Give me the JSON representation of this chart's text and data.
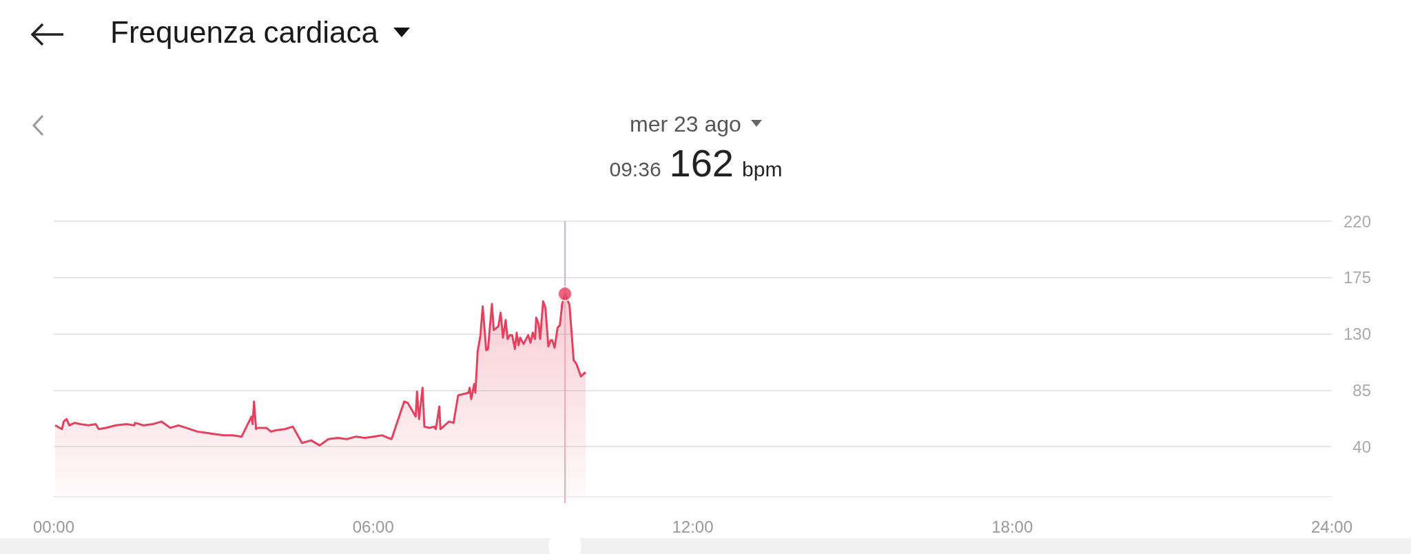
{
  "chart_data": {
    "type": "area",
    "title": "Frequenza cardiaca",
    "subtitle": "mer 23 ago",
    "annotations": [
      "09:36 162 bpm"
    ],
    "xlim": [
      0,
      24
    ],
    "xticks": [
      {
        "value": 0,
        "label": "00:00"
      },
      {
        "value": 6,
        "label": "06:00"
      },
      {
        "value": 12,
        "label": "12:00"
      },
      {
        "value": 18,
        "label": "18:00"
      },
      {
        "value": 24,
        "label": "24:00"
      }
    ],
    "ylim": [
      -5,
      220
    ],
    "yticks": [
      40,
      85,
      130,
      175,
      220
    ],
    "grid": "y",
    "marker": "none",
    "ref_lines": [
      {
        "axis": "x",
        "value": 9.6,
        "color": "#f2a9b7"
      }
    ],
    "series": [
      {
        "color": "#e5405e",
        "x": [
          0.026,
          0.155,
          0.186,
          0.242,
          0.293,
          0.392,
          0.5,
          0.651,
          0.789,
          0.845,
          0.975,
          1.169,
          1.363,
          1.514,
          1.527,
          1.686,
          1.859,
          2.023,
          2.191,
          2.346,
          2.484,
          2.7,
          2.872,
          3.023,
          3.196,
          3.368,
          3.528,
          3.713,
          3.735,
          3.761,
          3.8,
          3.821,
          3.994,
          4.08,
          4.166,
          4.339,
          4.49,
          4.662,
          4.835,
          4.994,
          5.158,
          5.33,
          5.503,
          5.675,
          5.848,
          6.171,
          6.344,
          6.581,
          6.646,
          6.797,
          6.822,
          6.861,
          6.926,
          6.96,
          7.055,
          7.142,
          7.176,
          7.241,
          7.262,
          7.422,
          7.508,
          7.594,
          7.789,
          7.81,
          7.84,
          7.896,
          7.918,
          7.961,
          8.013,
          8.056,
          8.121,
          8.155,
          8.229,
          8.263,
          8.349,
          8.392,
          8.436,
          8.487,
          8.522,
          8.565,
          8.608,
          8.66,
          8.694,
          8.729,
          8.759,
          8.824,
          8.91,
          8.953,
          8.996,
          9.039,
          9.061,
          9.104,
          9.134,
          9.19,
          9.233,
          9.289,
          9.333,
          9.363,
          9.406,
          9.462,
          9.505,
          9.548,
          9.6,
          9.686,
          9.764,
          9.816,
          9.902,
          9.967,
          9.988
        ],
        "values": [
          57,
          54,
          60,
          62,
          57,
          59,
          58,
          57,
          58,
          54,
          55,
          57,
          58,
          57,
          59,
          57,
          58,
          60,
          55,
          57,
          55,
          52,
          51,
          50,
          49,
          49,
          48,
          64,
          58,
          76,
          54,
          55,
          55,
          52,
          53,
          54,
          56,
          43,
          45,
          41,
          46,
          47,
          46,
          48,
          47,
          49,
          46,
          76,
          75,
          64,
          84,
          62,
          87,
          56,
          55,
          56,
          54,
          72,
          54,
          60,
          59,
          81,
          83,
          87,
          78,
          90,
          83,
          116,
          129,
          152,
          117,
          118,
          154,
          133,
          136,
          147,
          127,
          141,
          126,
          129,
          129,
          118,
          131,
          121,
          127,
          122,
          129,
          123,
          131,
          126,
          143,
          138,
          126,
          156,
          151,
          120,
          125,
          125,
          119,
          135,
          137,
          154,
          162,
          153,
          109,
          106,
          96,
          99,
          98
        ]
      },
      {
        "type": "scatter",
        "color": "#e5405e",
        "marker": "circle",
        "x": [
          9.6
        ],
        "values": [
          162
        ]
      }
    ]
  }
}
